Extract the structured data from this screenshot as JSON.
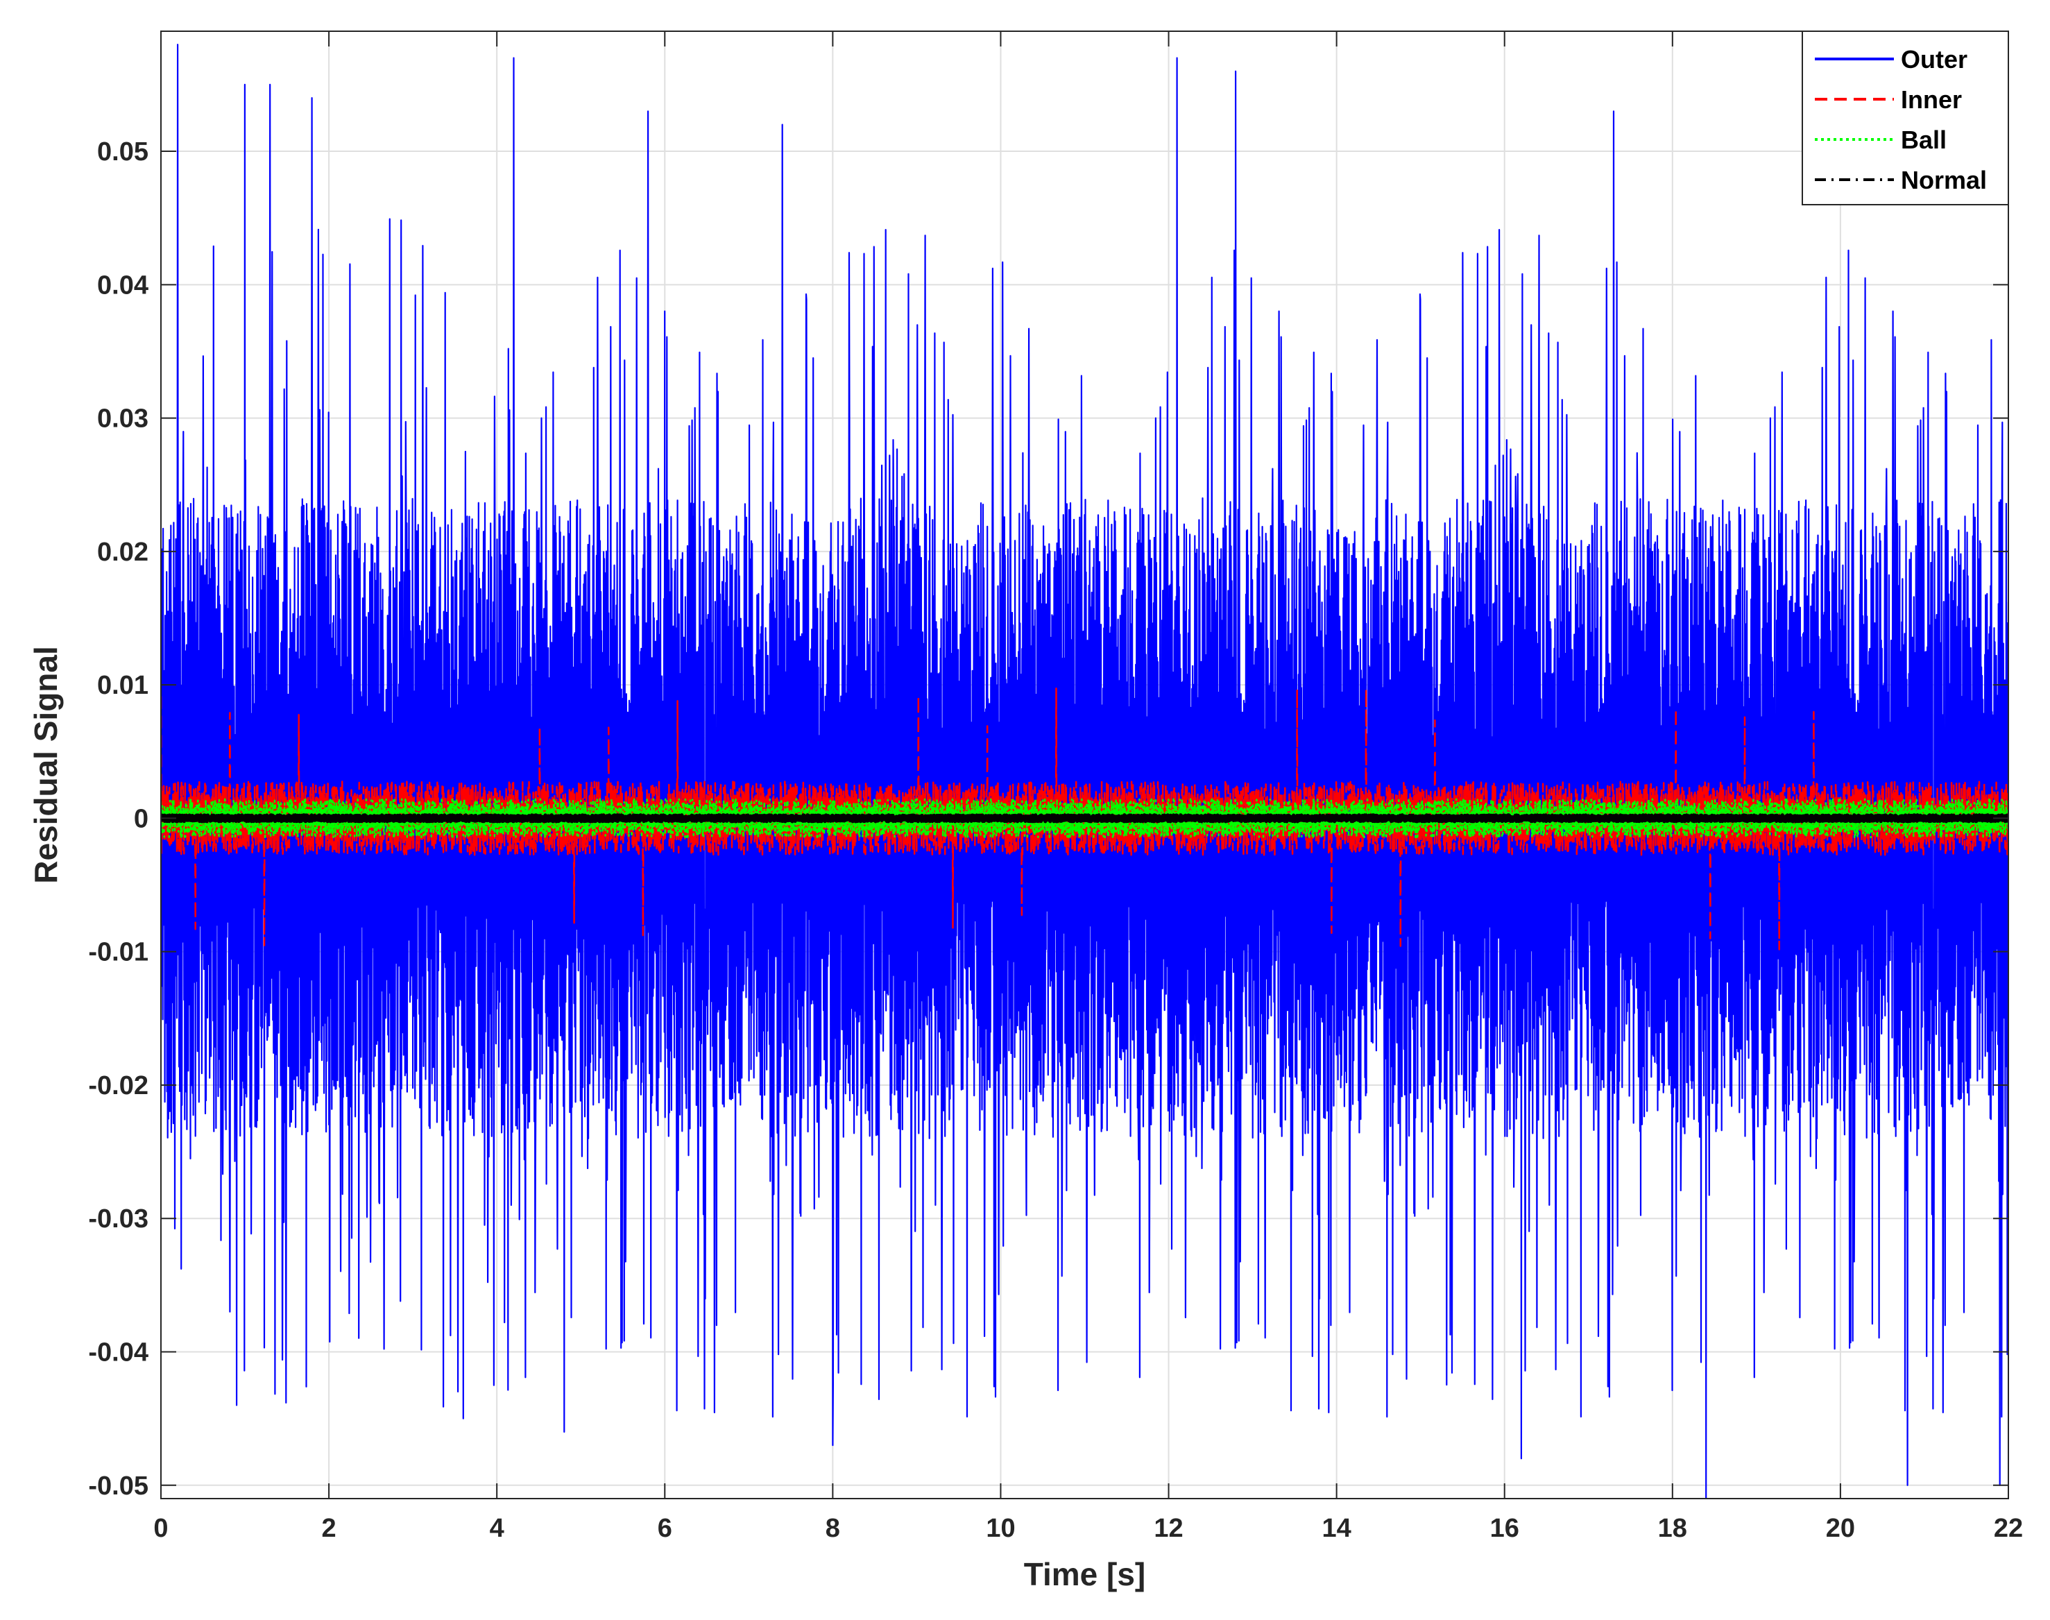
{
  "chart_data": {
    "type": "line",
    "title": "",
    "xlabel": "Time [s]",
    "ylabel": "Residual Signal",
    "xlim": [
      0,
      22
    ],
    "ylim": [
      -0.051,
      0.059
    ],
    "x_ticks": [
      0,
      2,
      4,
      6,
      8,
      10,
      12,
      14,
      16,
      18,
      20,
      22
    ],
    "x_tick_labels": [
      "0",
      "2",
      "4",
      "6",
      "8",
      "10",
      "12",
      "14",
      "16",
      "18",
      "20",
      "22"
    ],
    "y_ticks": [
      -0.05,
      -0.04,
      -0.03,
      -0.02,
      -0.01,
      0,
      0.01,
      0.02,
      0.03,
      0.04,
      0.05
    ],
    "y_tick_labels": [
      "-0.05",
      "-0.04",
      "-0.03",
      "-0.02",
      "-0.01",
      "0",
      "0.01",
      "0.02",
      "0.03",
      "0.04",
      "0.05"
    ],
    "grid": true,
    "legend_position": "top-right",
    "series": [
      {
        "name": "Outer",
        "color": "#0000ff",
        "line_style": "solid",
        "envelope_max": 0.058,
        "envelope_min": -0.051,
        "typical_amplitude": 0.02,
        "impulse_peaks": [
          {
            "t": 0.2,
            "v": 0.058
          },
          {
            "t": 1.0,
            "v": 0.055
          },
          {
            "t": 1.3,
            "v": 0.055
          },
          {
            "t": 1.8,
            "v": 0.054
          },
          {
            "t": 4.2,
            "v": 0.057
          },
          {
            "t": 5.8,
            "v": 0.053
          },
          {
            "t": 7.4,
            "v": 0.052
          },
          {
            "t": 12.1,
            "v": 0.057
          },
          {
            "t": 12.8,
            "v": 0.056
          },
          {
            "t": 17.3,
            "v": 0.053
          },
          {
            "t": 0.9,
            "v": -0.044
          },
          {
            "t": 3.6,
            "v": -0.045
          },
          {
            "t": 4.8,
            "v": -0.046
          },
          {
            "t": 8.0,
            "v": -0.047
          },
          {
            "t": 16.2,
            "v": -0.048
          },
          {
            "t": 18.4,
            "v": -0.051
          },
          {
            "t": 20.8,
            "v": -0.05
          },
          {
            "t": 21.9,
            "v": -0.05
          }
        ]
      },
      {
        "name": "Inner",
        "color": "#ff0000",
        "line_style": "dashed",
        "envelope_max": 0.012,
        "envelope_min": -0.011,
        "typical_amplitude": 0.0025,
        "spike_interval_s": 0.41,
        "spike_amplitude": 0.009
      },
      {
        "name": "Ball",
        "color": "#00ff00",
        "line_style": "dotted",
        "envelope_max": 0.0018,
        "envelope_min": -0.0018,
        "typical_amplitude": 0.0012
      },
      {
        "name": "Normal",
        "color": "#000000",
        "line_style": "dash-dot",
        "envelope_max": 0.0003,
        "envelope_min": -0.0003,
        "typical_amplitude": 0.0002
      }
    ]
  }
}
